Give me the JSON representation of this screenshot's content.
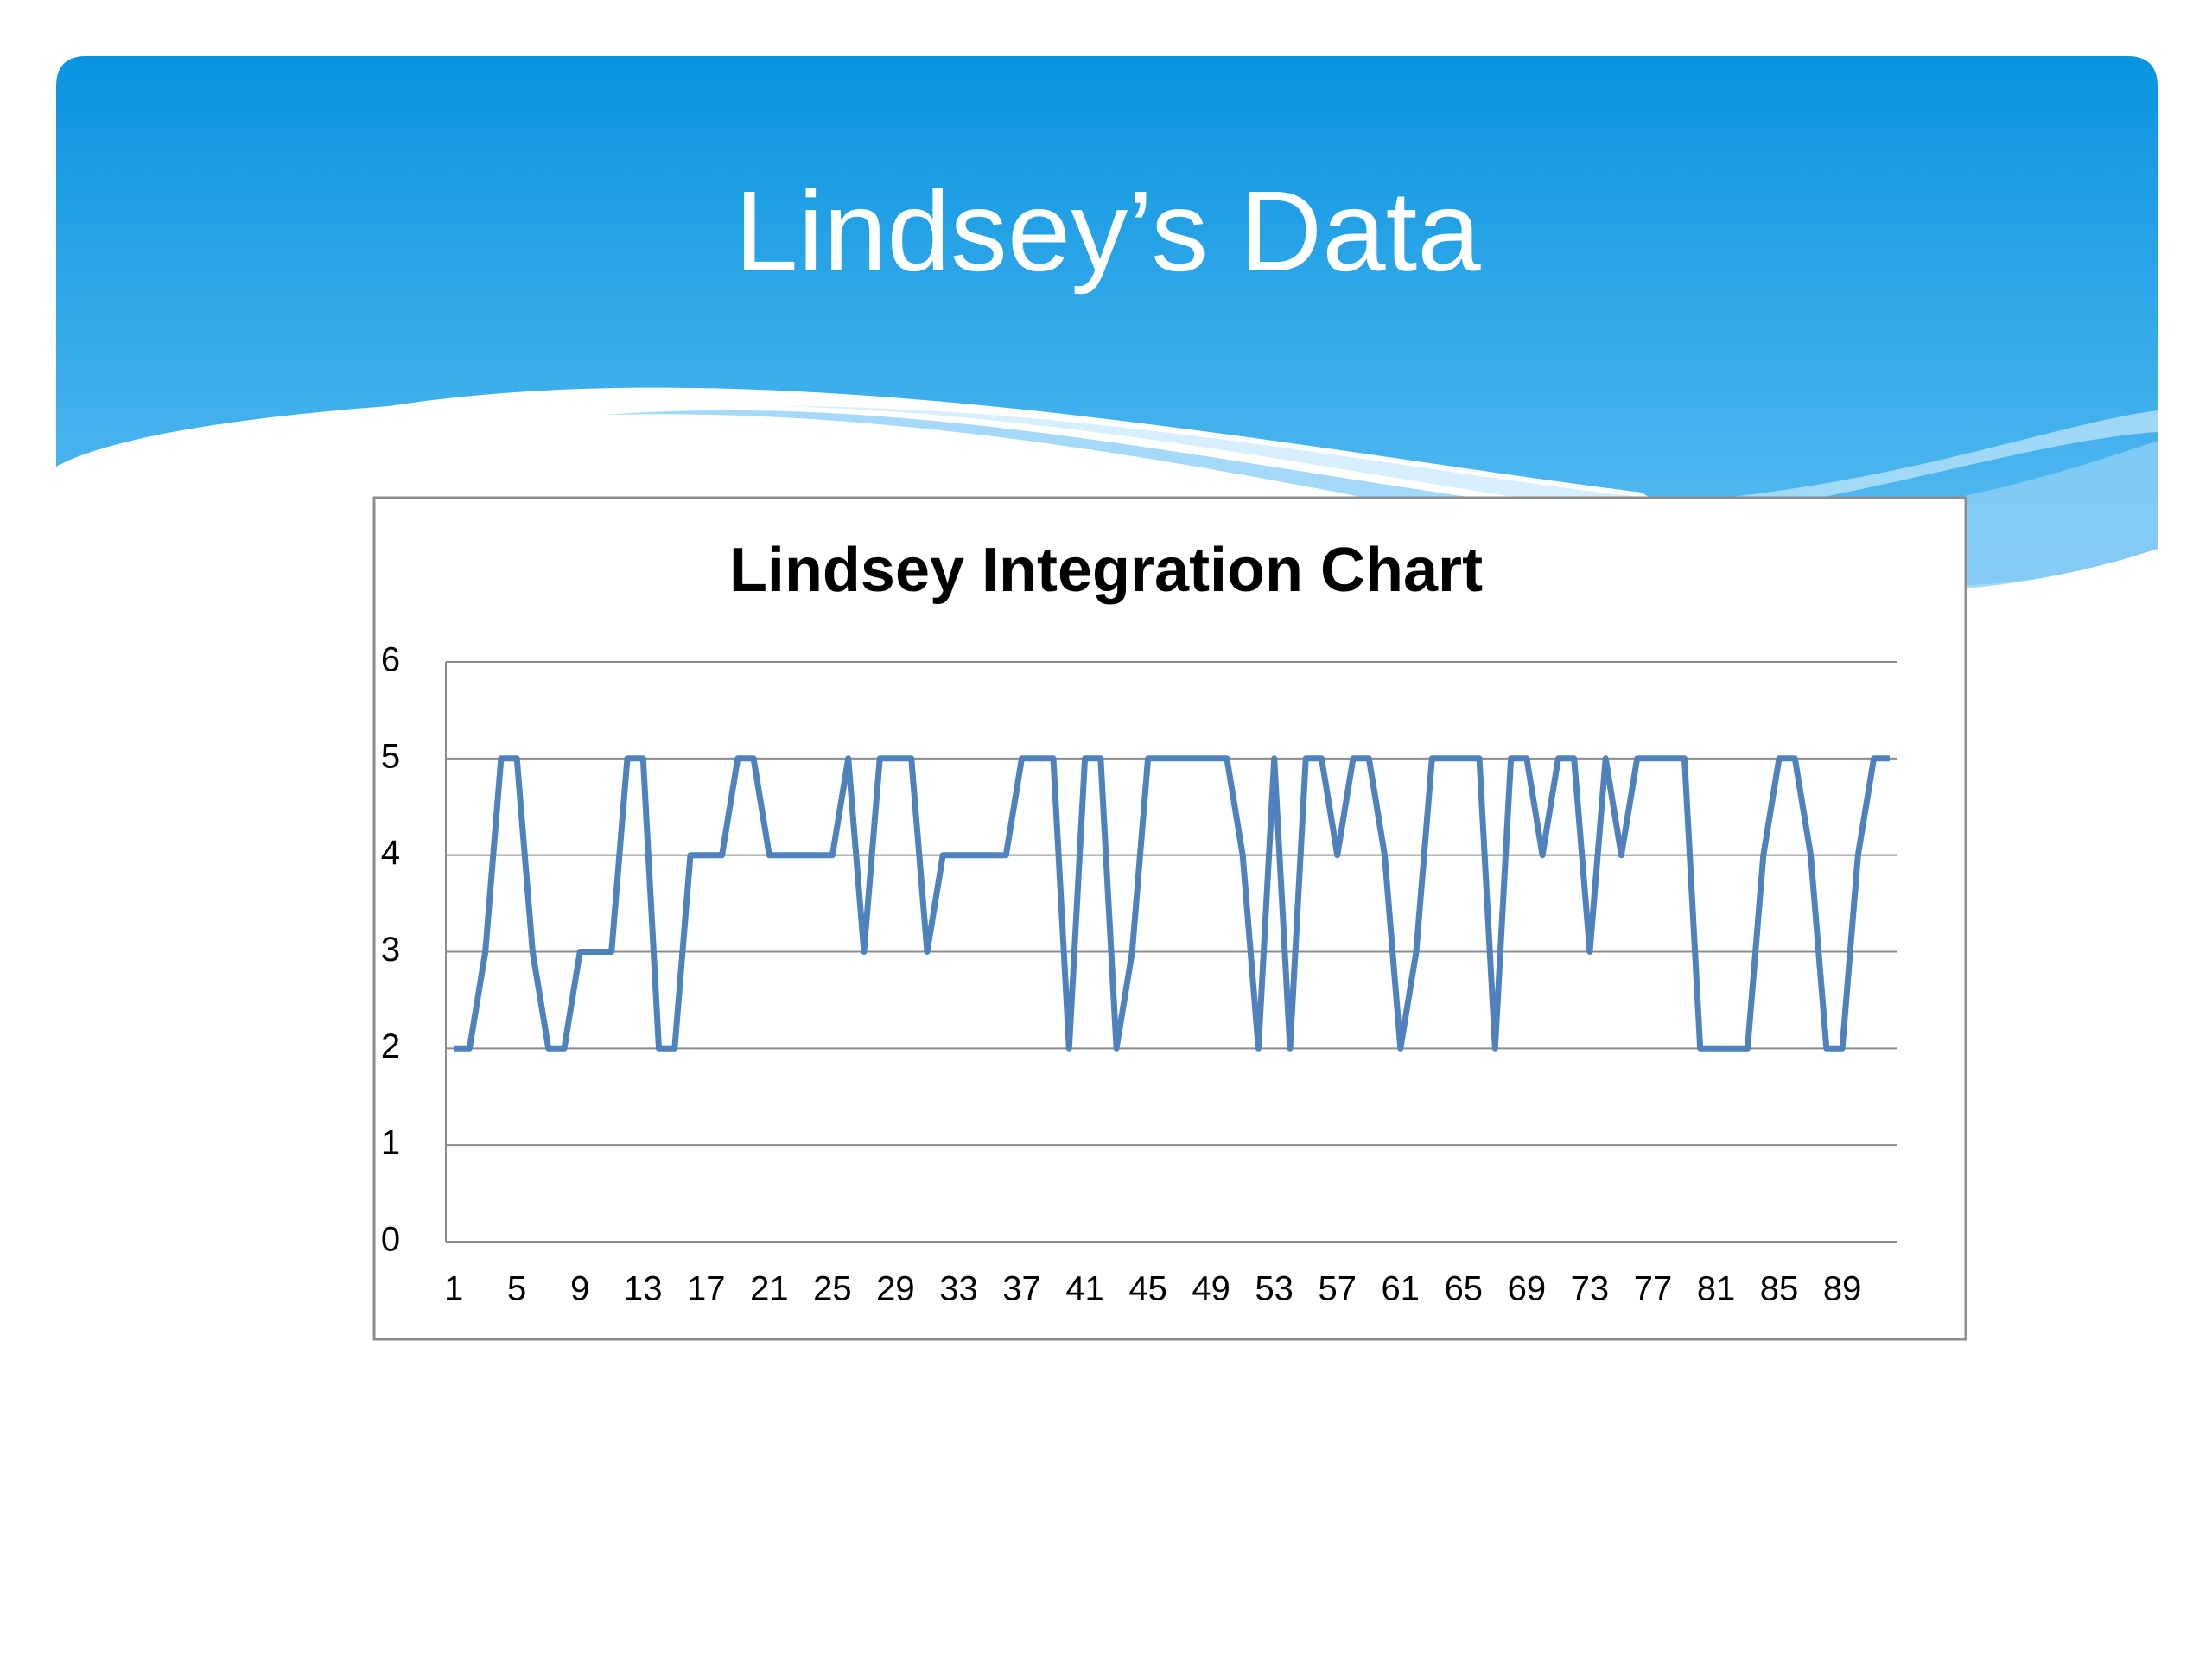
{
  "slide": {
    "title": "Lindsey’s Data"
  },
  "chart_data": {
    "type": "line",
    "title": "Lindsey Integration Chart",
    "categories": [
      "1",
      null,
      null,
      null,
      "5",
      null,
      null,
      null,
      "9",
      null,
      null,
      null,
      "13",
      null,
      null,
      null,
      "17",
      null,
      null,
      null,
      "21",
      null,
      null,
      null,
      "25",
      null,
      null,
      null,
      "29",
      null,
      null,
      null,
      "33",
      null,
      null,
      null,
      "37",
      null,
      null,
      null,
      "41",
      null,
      null,
      null,
      "45",
      null,
      null,
      null,
      "49",
      null,
      null,
      null,
      "53",
      null,
      null,
      null,
      "57",
      null,
      null,
      null,
      "61",
      null,
      null,
      null,
      "65",
      null,
      null,
      null,
      "69",
      null,
      null,
      null,
      "73",
      null,
      null,
      null,
      "77",
      null,
      null,
      null,
      "81",
      null,
      null,
      null,
      "85",
      null,
      null,
      null,
      "89",
      null,
      null,
      null
    ],
    "values": [
      2,
      2,
      3,
      5,
      5,
      3,
      2,
      2,
      3,
      3,
      3,
      5,
      5,
      2,
      2,
      4,
      4,
      4,
      5,
      5,
      4,
      4,
      4,
      4,
      4,
      5,
      3,
      5,
      5,
      5,
      3,
      4,
      4,
      4,
      4,
      4,
      5,
      5,
      5,
      2,
      5,
      5,
      2,
      3,
      5,
      5,
      5,
      5,
      5,
      5,
      4,
      2,
      5,
      2,
      5,
      5,
      4,
      5,
      5,
      4,
      2,
      3,
      5,
      5,
      5,
      5,
      2,
      5,
      5,
      4,
      5,
      5,
      3,
      5,
      4,
      5,
      5,
      5,
      5,
      2,
      2,
      2,
      2,
      4,
      5,
      5,
      4,
      2,
      2,
      4,
      5,
      5
    ],
    "color": "#4f81bd",
    "ylim": [
      0,
      6
    ],
    "yticks": [
      0,
      1,
      2,
      3,
      4,
      5,
      6
    ],
    "grid": true
  }
}
